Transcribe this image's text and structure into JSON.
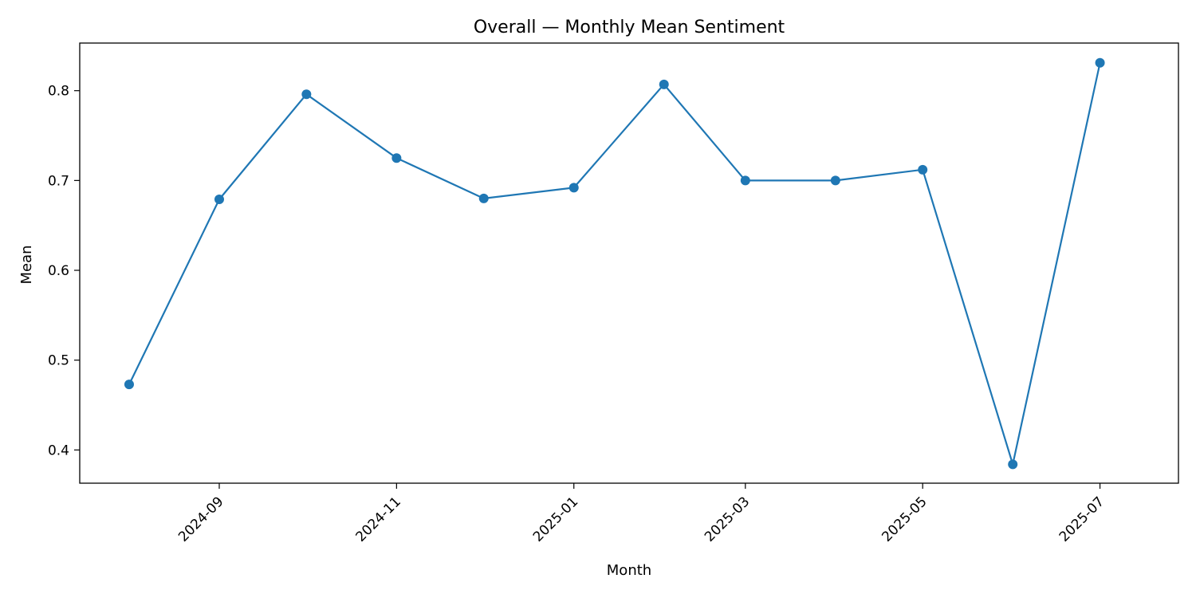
{
  "chart_data": {
    "type": "line",
    "title": "Overall — Monthly Mean Sentiment",
    "xlabel": "Month",
    "ylabel": "Mean",
    "x": [
      "2024-08",
      "2024-09",
      "2024-10",
      "2024-11",
      "2024-12",
      "2025-01",
      "2025-02",
      "2025-03",
      "2025-04",
      "2025-05",
      "2025-06",
      "2025-07"
    ],
    "series": [
      {
        "values": [
          0.473,
          0.679,
          0.796,
          0.725,
          0.68,
          0.692,
          0.807,
          0.7,
          0.7,
          0.712,
          0.384,
          0.831
        ],
        "color": "#1f77b4"
      }
    ],
    "xticks": [
      "2024-09",
      "2024-11",
      "2025-01",
      "2025-03",
      "2025-05",
      "2025-07"
    ],
    "yticks": [
      0.4,
      0.5,
      0.6,
      0.7,
      0.8
    ],
    "xlim": [
      "2024-07-15",
      "2025-07-28"
    ],
    "ylim": [
      0.363,
      0.853
    ],
    "grid": false,
    "marker": "circle"
  }
}
